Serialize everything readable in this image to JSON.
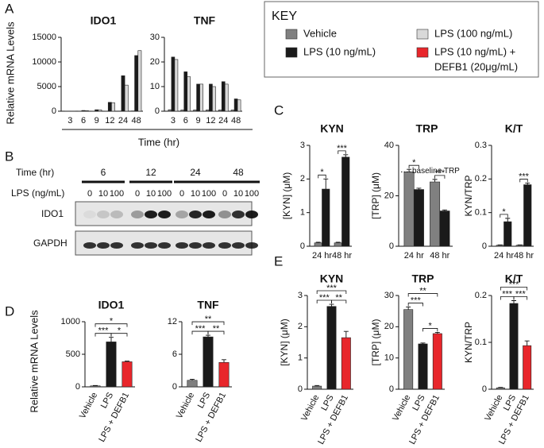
{
  "panels": {
    "A": {
      "letter": "A",
      "ylabel": "Relative mRNA Levels",
      "xlabel": "Time (hr)"
    },
    "B": {
      "letter": "B",
      "time_label": "Time (hr)",
      "times": [
        "6",
        "12",
        "24",
        "48"
      ],
      "dose_label": "LPS (ng/mL)",
      "doses": [
        "0",
        "10",
        "100"
      ],
      "bands": [
        "IDO1",
        "GAPDH"
      ]
    },
    "C": {
      "letter": "C"
    },
    "D": {
      "letter": "D",
      "ylabel": "Relative mRNA Levels"
    },
    "E": {
      "letter": "E"
    }
  },
  "key": {
    "title": "KEY",
    "items": [
      {
        "lines": [
          "Vehicle"
        ],
        "color": "#808080"
      },
      {
        "lines": [
          "LPS (10 ng/mL)"
        ],
        "color": "#1a1a1a"
      },
      {
        "lines": [
          "LPS (100 ng/mL)"
        ],
        "color": "#d9d9d9"
      },
      {
        "lines": [
          "LPS (10 ng/mL) +",
          "DEFB1 (20μg/mL)"
        ],
        "color": "#e8262b"
      }
    ]
  },
  "chart_data": [
    {
      "type": "bar",
      "title": "IDO1",
      "categories": [
        "3",
        "6",
        "9",
        "12",
        "24",
        "48"
      ],
      "ylim": [
        0,
        15000
      ],
      "yticks": [
        0,
        5000,
        10000,
        15000
      ],
      "series": [
        {
          "color": "#808080",
          "values": [
            20,
            20,
            20,
            30,
            40,
            60
          ]
        },
        {
          "color": "#1a1a1a",
          "values": [
            30,
            150,
            300,
            1800,
            7200,
            11300
          ]
        },
        {
          "color": "#d9d9d9",
          "values": [
            30,
            120,
            280,
            1700,
            5300,
            12300
          ]
        }
      ]
    },
    {
      "type": "bar",
      "title": "TNF",
      "categories": [
        "3",
        "6",
        "9",
        "12",
        "24",
        "48"
      ],
      "ylim": [
        0,
        30
      ],
      "yticks": [
        0,
        10,
        20,
        30
      ],
      "series": [
        {
          "color": "#808080",
          "values": [
            0.6,
            0.5,
            0.5,
            0.5,
            0.5,
            0.5
          ]
        },
        {
          "color": "#1a1a1a",
          "values": [
            22,
            16,
            11,
            11,
            12,
            5
          ]
        },
        {
          "color": "#d9d9d9",
          "values": [
            21,
            14,
            11,
            10,
            11,
            4.6
          ]
        }
      ]
    },
    {
      "type": "bar",
      "title": "KYN",
      "ylabel": "[KYN] (μM)",
      "categories": [
        "24 hr",
        "48 hr"
      ],
      "ylim": [
        0,
        3
      ],
      "yticks": [
        0,
        1,
        2,
        3
      ],
      "series": [
        {
          "color": "#808080",
          "values": [
            0.1,
            0.1
          ],
          "errors": [
            0.02,
            0.02
          ]
        },
        {
          "color": "#1a1a1a",
          "values": [
            1.7,
            2.65
          ],
          "errors": [
            0.3,
            0.07
          ]
        }
      ],
      "annotations": [
        {
          "label": "*",
          "category": "24 hr"
        },
        {
          "label": "***",
          "category": "48 hr"
        }
      ]
    },
    {
      "type": "bar",
      "title": "TRP",
      "ylabel": "[TRP] (μM)",
      "categories": [
        "24 hr",
        "48 hr"
      ],
      "ylim": [
        0,
        40
      ],
      "yticks": [
        0,
        20,
        40
      ],
      "series": [
        {
          "color": "#808080",
          "values": [
            29.5,
            25.5
          ],
          "errors": [
            1,
            1
          ]
        },
        {
          "color": "#1a1a1a",
          "values": [
            22.5,
            14
          ],
          "errors": [
            0.5,
            0.4
          ]
        }
      ],
      "reference": {
        "label": "baseline TRP",
        "value": 29.5
      },
      "annotations": [
        {
          "label": "*",
          "category": "24 hr"
        },
        {
          "label": "***",
          "category": "48 hr"
        }
      ]
    },
    {
      "type": "bar",
      "title": "K/T",
      "ylabel": "KYN/TRP",
      "categories": [
        "24 hr",
        "48 hr"
      ],
      "ylim": [
        0,
        0.3
      ],
      "yticks": [
        0,
        0.1,
        0.2,
        0.3
      ],
      "series": [
        {
          "color": "#808080",
          "values": [
            0.003,
            0.003
          ],
          "errors": [
            0.001,
            0.001
          ]
        },
        {
          "color": "#1a1a1a",
          "values": [
            0.073,
            0.183
          ],
          "errors": [
            0.01,
            0.005
          ]
        }
      ],
      "annotations": [
        {
          "label": "*",
          "category": "24 hr"
        },
        {
          "label": "***",
          "category": "48 hr"
        }
      ]
    },
    {
      "type": "bar",
      "title": "IDO1",
      "categories": [
        "Vehicle",
        "LPS",
        "LPS + DEFB1"
      ],
      "ylim": [
        0,
        1000
      ],
      "yticks": [
        0,
        500,
        1000
      ],
      "values": [
        15,
        690,
        385
      ],
      "errors": [
        5,
        70,
        10
      ],
      "colors": [
        "#808080",
        "#1a1a1a",
        "#e8262b"
      ],
      "annotations": [
        {
          "label": "***",
          "between": [
            "Vehicle",
            "LPS"
          ]
        },
        {
          "label": "*",
          "between": [
            "LPS",
            "LPS + DEFB1"
          ]
        },
        {
          "label": "*",
          "between": [
            "Vehicle",
            "LPS + DEFB1"
          ]
        }
      ]
    },
    {
      "type": "bar",
      "title": "TNF",
      "categories": [
        "Vehicle",
        "LPS",
        "LPS + DEFB1"
      ],
      "ylim": [
        0,
        12
      ],
      "yticks": [
        0,
        6,
        12
      ],
      "values": [
        1.2,
        9.2,
        4.5
      ],
      "errors": [
        0.2,
        0.3,
        0.5
      ],
      "colors": [
        "#808080",
        "#1a1a1a",
        "#e8262b"
      ],
      "annotations": [
        {
          "label": "***",
          "between": [
            "Vehicle",
            "LPS"
          ]
        },
        {
          "label": "**",
          "between": [
            "LPS",
            "LPS + DEFB1"
          ]
        },
        {
          "label": "**",
          "between": [
            "Vehicle",
            "LPS + DEFB1"
          ]
        }
      ]
    },
    {
      "type": "bar",
      "title": "KYN",
      "ylabel": "[KYN] (μM)",
      "categories": [
        "Vehicle",
        "LPS",
        "LPS + DEFB1"
      ],
      "ylim": [
        0,
        3
      ],
      "yticks": [
        0,
        1,
        2,
        3
      ],
      "values": [
        0.1,
        2.65,
        1.65
      ],
      "errors": [
        0.02,
        0.07,
        0.2
      ],
      "colors": [
        "#808080",
        "#1a1a1a",
        "#e8262b"
      ],
      "annotations": [
        {
          "label": "***",
          "between": [
            "Vehicle",
            "LPS"
          ]
        },
        {
          "label": "**",
          "between": [
            "LPS",
            "LPS + DEFB1"
          ]
        },
        {
          "label": "***",
          "between": [
            "Vehicle",
            "LPS + DEFB1"
          ]
        }
      ]
    },
    {
      "type": "bar",
      "title": "TRP",
      "ylabel": "[TRP] (μM)",
      "categories": [
        "Vehicle",
        "LPS",
        "LPS + DEFB1"
      ],
      "ylim": [
        0,
        30
      ],
      "yticks": [
        0,
        10,
        20,
        30
      ],
      "values": [
        25.5,
        14.5,
        17.8
      ],
      "errors": [
        0.8,
        0.3,
        0.4
      ],
      "colors": [
        "#808080",
        "#1a1a1a",
        "#e8262b"
      ],
      "annotations": [
        {
          "label": "***",
          "between": [
            "Vehicle",
            "LPS"
          ]
        },
        {
          "label": "*",
          "between": [
            "LPS",
            "LPS + DEFB1"
          ]
        },
        {
          "label": "**",
          "between": [
            "Vehicle",
            "LPS + DEFB1"
          ]
        }
      ]
    },
    {
      "type": "bar",
      "title": "K/T",
      "ylabel": "KYN/TRP",
      "categories": [
        "Vehicle",
        "LPS",
        "LPS + DEFB1"
      ],
      "ylim": [
        0,
        0.2
      ],
      "yticks": [
        0,
        0.1,
        0.2
      ],
      "values": [
        0.003,
        0.183,
        0.093
      ],
      "errors": [
        0.001,
        0.006,
        0.01
      ],
      "colors": [
        "#808080",
        "#1a1a1a",
        "#e8262b"
      ],
      "annotations": [
        {
          "label": "***",
          "between": [
            "Vehicle",
            "LPS"
          ]
        },
        {
          "label": "***",
          "between": [
            "LPS",
            "LPS + DEFB1"
          ]
        },
        {
          "label": "***",
          "between": [
            "Vehicle",
            "LPS + DEFB1"
          ]
        }
      ]
    }
  ]
}
